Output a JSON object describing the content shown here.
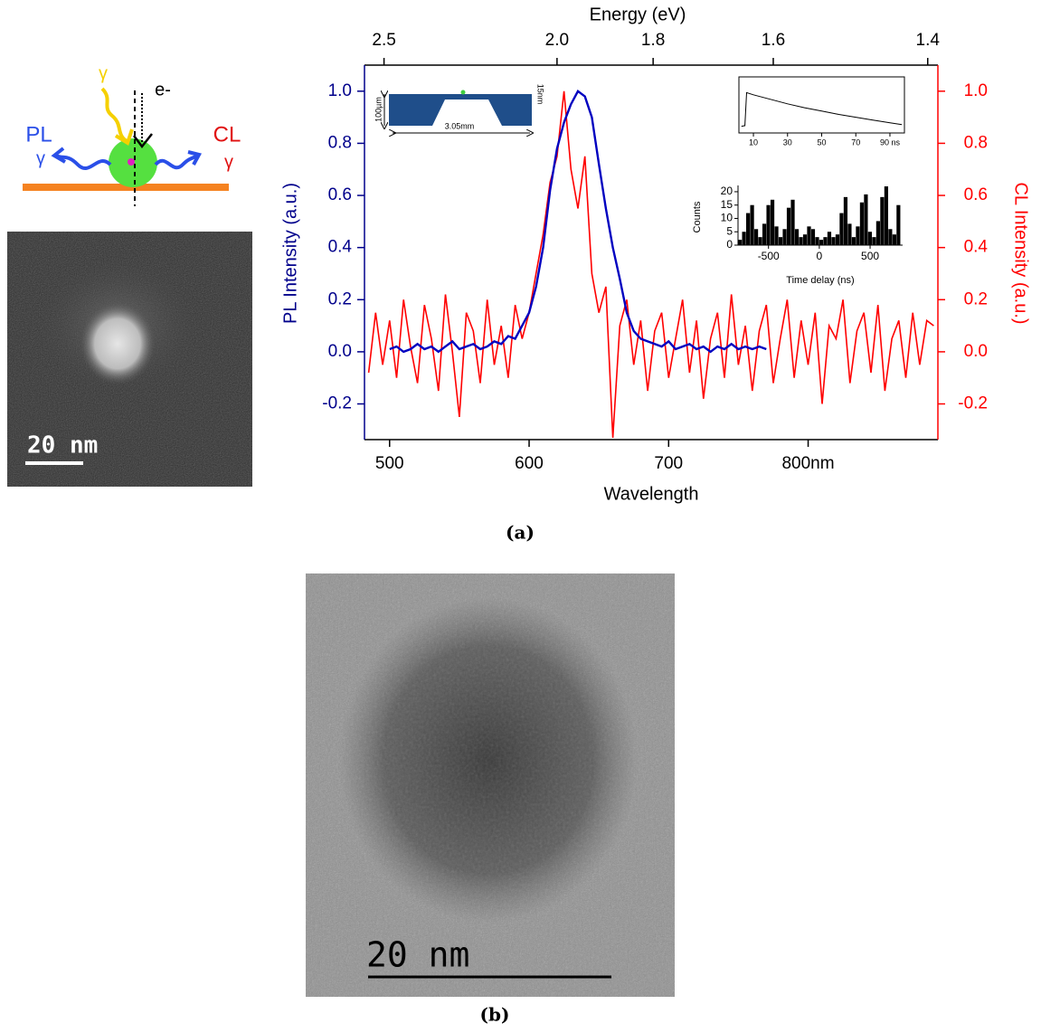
{
  "chart_data": [
    {
      "type": "line",
      "xlabel": "Wavelength",
      "x2label": "Energy (eV)",
      "ylabel": "PL Intensity (a.u.)",
      "y2label": "CL Intensity (a.u.)",
      "xlim": [
        482,
        893
      ],
      "xticks": [
        500,
        600,
        700,
        {
          "value": 800,
          "label": "800nm"
        }
      ],
      "x2ticks": [
        2.5,
        {
          "value": 2.0,
          "label": "2.0"
        },
        1.8,
        1.6,
        1.4
      ],
      "ylim": [
        -0.337,
        1.1
      ],
      "yticks": [
        -0.2,
        {
          "value": 0,
          "label": "0.0"
        },
        0.2,
        0.4,
        0.6,
        0.8,
        {
          "value": 1,
          "label": "1.0"
        }
      ],
      "y2lim": [
        -0.337,
        1.1
      ],
      "y2ticks": [
        -0.2,
        {
          "value": 0,
          "label": "0.0"
        },
        0.2,
        0.4,
        0.6,
        0.8,
        {
          "value": 1,
          "label": "1.0"
        }
      ],
      "series": [
        {
          "color": "#0000c0",
          "axis": "y",
          "x": [
            500,
            505,
            510,
            515,
            520,
            525,
            530,
            535,
            540,
            545,
            550,
            555,
            560,
            565,
            570,
            575,
            580,
            585,
            590,
            595,
            600,
            605,
            610,
            615,
            620,
            625,
            630,
            635,
            640,
            645,
            650,
            655,
            660,
            665,
            670,
            675,
            680,
            685,
            690,
            695,
            700,
            705,
            710,
            715,
            720,
            725,
            730,
            735,
            740,
            745,
            750,
            755,
            760,
            765,
            770
          ],
          "values": [
            0.01,
            0.02,
            0.0,
            0.01,
            0.03,
            0.01,
            0.02,
            0.0,
            0.02,
            0.04,
            0.01,
            0.02,
            0.03,
            0.01,
            0.02,
            0.04,
            0.03,
            0.06,
            0.05,
            0.1,
            0.15,
            0.25,
            0.4,
            0.62,
            0.78,
            0.88,
            0.95,
            1.0,
            0.98,
            0.9,
            0.72,
            0.55,
            0.4,
            0.28,
            0.15,
            0.08,
            0.05,
            0.04,
            0.03,
            0.02,
            0.04,
            0.01,
            0.02,
            0.03,
            0.01,
            0.02,
            0.0,
            0.02,
            0.01,
            0.03,
            0.01,
            0.02,
            0.01,
            0.02,
            0.01
          ]
        },
        {
          "color": "#ff0000",
          "axis": "y2",
          "x": [
            485,
            490,
            495,
            500,
            505,
            510,
            515,
            520,
            525,
            530,
            535,
            540,
            545,
            550,
            555,
            560,
            565,
            570,
            575,
            580,
            585,
            590,
            595,
            600,
            605,
            610,
            615,
            620,
            625,
            630,
            635,
            640,
            645,
            650,
            655,
            660,
            665,
            670,
            675,
            680,
            685,
            690,
            695,
            700,
            705,
            710,
            715,
            720,
            725,
            730,
            735,
            740,
            745,
            750,
            755,
            760,
            765,
            770,
            775,
            780,
            785,
            790,
            795,
            800,
            805,
            810,
            815,
            820,
            825,
            830,
            835,
            840,
            845,
            850,
            855,
            860,
            865,
            870,
            875,
            880,
            885,
            890
          ],
          "values": [
            -0.08,
            0.15,
            -0.05,
            0.12,
            -0.1,
            0.2,
            0.02,
            -0.12,
            0.18,
            0.05,
            -0.15,
            0.22,
            0.0,
            -0.25,
            0.15,
            0.08,
            -0.12,
            0.2,
            -0.05,
            0.1,
            -0.1,
            0.18,
            0.05,
            0.15,
            0.3,
            0.45,
            0.65,
            0.75,
            1.0,
            0.7,
            0.55,
            0.75,
            0.3,
            0.15,
            0.25,
            -0.33,
            0.1,
            0.2,
            -0.05,
            0.12,
            -0.15,
            0.08,
            0.15,
            -0.1,
            0.05,
            0.2,
            -0.08,
            0.12,
            -0.18,
            0.05,
            0.15,
            -0.1,
            0.22,
            -0.05,
            0.1,
            -0.15,
            0.08,
            0.18,
            -0.12,
            0.05,
            0.2,
            -0.1,
            0.12,
            -0.05,
            0.15,
            -0.2,
            0.1,
            0.05,
            0.2,
            -0.12,
            0.08,
            0.15,
            -0.08,
            0.18,
            -0.15,
            0.05,
            0.12,
            -0.1,
            0.15,
            -0.05,
            0.12,
            0.1
          ]
        }
      ]
    },
    {
      "type": "line",
      "xlim": [
        1.5,
        98.5
      ],
      "ylim": [
        0,
        1
      ],
      "xticks": [
        10,
        30,
        50,
        70,
        {
          "value": 90,
          "label": "90 ns"
        }
      ],
      "series": [
        {
          "color": "#000000",
          "x": [
            3,
            5,
            6,
            10,
            20,
            30,
            40,
            50,
            60,
            70,
            80,
            90,
            97
          ],
          "values": [
            0.12,
            0.13,
            0.72,
            0.68,
            0.6,
            0.52,
            0.45,
            0.39,
            0.33,
            0.28,
            0.23,
            0.18,
            0.15
          ]
        }
      ]
    },
    {
      "type": "histogram",
      "xlabel": "Time delay (ns)",
      "ylabel": "Counts",
      "color": "#000000",
      "xlim": [
        -800,
        820
      ],
      "ylim": [
        0,
        21
      ],
      "xticks": [
        -500,
        0,
        500
      ],
      "yticks": [
        0,
        5,
        10,
        15,
        20
      ],
      "bins": [
        -800,
        -760,
        -720,
        -680,
        -640,
        -600,
        -560,
        -520,
        -480,
        -440,
        -400,
        -360,
        -320,
        -280,
        -240,
        -200,
        -160,
        -120,
        -80,
        -40,
        0,
        40,
        80,
        120,
        160,
        200,
        240,
        280,
        320,
        360,
        400,
        440,
        480,
        520,
        560,
        600,
        640,
        680,
        720,
        760,
        800
      ],
      "values": [
        2,
        5,
        12,
        15,
        6,
        3,
        8,
        15,
        17,
        7,
        3,
        6,
        14,
        17,
        6,
        3,
        4,
        7,
        6,
        3,
        2,
        3,
        5,
        3,
        4,
        12,
        18,
        8,
        3,
        7,
        16,
        19,
        5,
        3,
        9,
        18,
        22,
        6,
        4,
        15
      ]
    }
  ],
  "schematic": {
    "photon_in": "γ",
    "electron": "e-",
    "pl": "PL",
    "pl_photon": "γ",
    "cl": "CL",
    "cl_photon": "γ"
  },
  "geometry_inset": {
    "height": "100µm",
    "width": "3.05mm",
    "thickness": "15nm"
  },
  "stem_image": {
    "scale_bar": "20 nm"
  },
  "tem_image": {
    "scale_bar": "20 nm"
  },
  "captions": [
    "(a)",
    "(b)"
  ]
}
